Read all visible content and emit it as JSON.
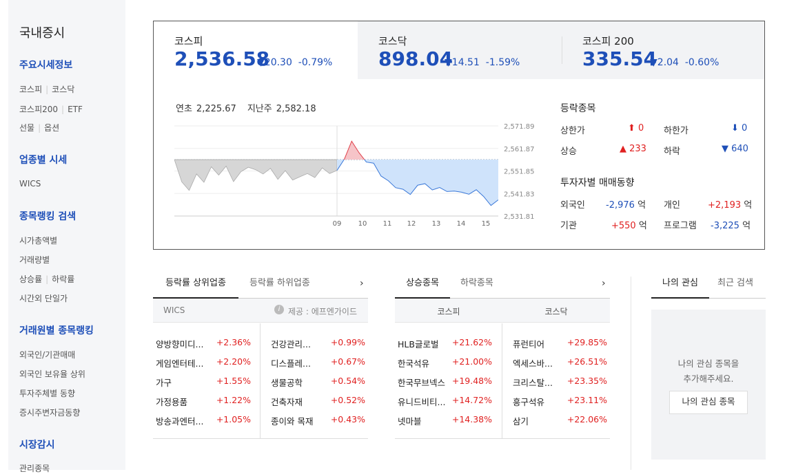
{
  "sidebar": {
    "title": "국내증시",
    "sections": [
      {
        "title": "주요시세정보"
      },
      {
        "title": "업종별 시세"
      },
      {
        "title": "종목랭킹 검색"
      },
      {
        "title": "거래원별 종목랭킹"
      },
      {
        "title": "시장감시"
      }
    ],
    "items": {
      "kospi": "코스피",
      "kosdaq": "코스닥",
      "kospi200": "코스피200",
      "etf": "ETF",
      "futures": "선물",
      "options": "옵션",
      "wics": "WICS",
      "marketcap": "시가총액별",
      "volume": "거래량별",
      "rise": "상승률",
      "fall": "하락률",
      "afterhours": "시간외 단일가",
      "foreign_inst": "외국인/기관매매",
      "foreign_hold": "외국인 보유율 상위",
      "investor": "투자주체별 동향",
      "margin": "증시주변자금동향",
      "managed": "관리종목"
    }
  },
  "indices": [
    {
      "name": "코스피",
      "value": "2,536.58",
      "arrow": "▼",
      "change": "20.30",
      "pct": "-0.79%"
    },
    {
      "name": "코스닥",
      "value": "898.04",
      "arrow": "▼",
      "change": "14.51",
      "pct": "-1.59%"
    },
    {
      "name": "코스피 200",
      "value": "335.54",
      "arrow": "▼",
      "change": "2.04",
      "pct": "-0.60%"
    }
  ],
  "summary": {
    "ytd_label": "연초",
    "ytd_value": "2,225.67",
    "lastweek_label": "지난주",
    "lastweek_value": "2,582.18"
  },
  "chart_data": {
    "type": "area",
    "y_ticks": [
      "2,571.89",
      "2,561.87",
      "2,551.85",
      "2,541.83",
      "2,531.81"
    ],
    "x_ticks": [
      "09",
      "10",
      "11",
      "12",
      "13",
      "14",
      "15"
    ],
    "ylim": [
      2531.81,
      2571.89
    ],
    "baseline": 2556.88,
    "series": [
      {
        "values": [
          2556.9,
          2547.0,
          2543.2,
          2550.5,
          2546.8,
          2553.7,
          2550.0,
          2554.0,
          2547.1,
          2551.5,
          2553.5,
          2552.4,
          2550.5,
          2553.0,
          2548.1,
          2552.0,
          2547.8,
          2549.3,
          2550.7,
          2548.9,
          2553.2,
          2550.7,
          2552.1,
          2557.1,
          2565.1,
          2560.0,
          2555.8,
          2555.3,
          2549.6,
          2547.5,
          2544.4,
          2543.7,
          2541.4,
          2545.5,
          2546.2,
          2543.4,
          2544.5,
          2542.7,
          2542.9,
          2542.4,
          2541.5,
          2543.5,
          2540.5,
          2536.5,
          2539.0
        ]
      }
    ]
  },
  "updown": {
    "title": "등락종목",
    "upper_limit_label": "상한가",
    "upper_limit_value": "0",
    "lower_limit_label": "하한가",
    "lower_limit_value": "0",
    "up_label": "상승",
    "up_value": "233",
    "down_label": "하락",
    "down_value": "640"
  },
  "investors": {
    "title": "투자자별 매매동향",
    "foreign_label": "외국인",
    "foreign_value": "-2,976",
    "unit": "억",
    "individual_label": "개인",
    "individual_value": "+2,193",
    "inst_label": "기관",
    "inst_value": "+550",
    "program_label": "프로그램",
    "program_value": "-3,225"
  },
  "sector_box": {
    "tab_active": "등락률 상위업종",
    "tab_inactive": "등락률 하위업종",
    "sub_left": "WICS",
    "source": "제공 : 에프엔가이드",
    "left": [
      {
        "name": "양방향미디...",
        "pct": "+2.36%"
      },
      {
        "name": "게임엔터테...",
        "pct": "+2.20%"
      },
      {
        "name": "가구",
        "pct": "+1.55%"
      },
      {
        "name": "가정용품",
        "pct": "+1.22%"
      },
      {
        "name": "방송과엔터...",
        "pct": "+1.05%"
      }
    ],
    "right": [
      {
        "name": "건강관리...",
        "pct": "+0.99%"
      },
      {
        "name": "디스플레...",
        "pct": "+0.67%"
      },
      {
        "name": "생물공학",
        "pct": "+0.54%"
      },
      {
        "name": "건축자재",
        "pct": "+0.52%"
      },
      {
        "name": "종이와 목재",
        "pct": "+0.43%"
      }
    ]
  },
  "stock_box": {
    "tab_active": "상승종목",
    "tab_inactive": "하락종목",
    "col_left": "코스피",
    "col_right": "코스닥",
    "left": [
      {
        "name": "HLB글로벌",
        "pct": "+21.62%"
      },
      {
        "name": "한국석유",
        "pct": "+21.00%"
      },
      {
        "name": "한국무브넥스",
        "pct": "+19.48%"
      },
      {
        "name": "유니드비티...",
        "pct": "+14.72%"
      },
      {
        "name": "넷마블",
        "pct": "+14.38%"
      }
    ],
    "right": [
      {
        "name": "퓨런티어",
        "pct": "+29.85%"
      },
      {
        "name": "엑세스바...",
        "pct": "+26.51%"
      },
      {
        "name": "크리스탈...",
        "pct": "+23.35%"
      },
      {
        "name": "흥구석유",
        "pct": "+23.11%"
      },
      {
        "name": "삼기",
        "pct": "+22.06%"
      }
    ]
  },
  "my_box": {
    "tab_active": "나의 관심",
    "tab_inactive": "최근 검색",
    "msg1": "나의 관심 종목을",
    "msg2": "추가해주세요.",
    "button": "나의 관심 종목"
  }
}
